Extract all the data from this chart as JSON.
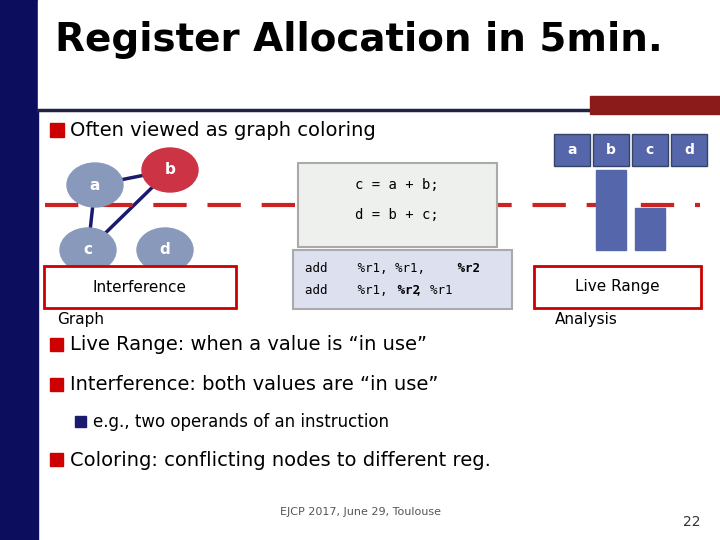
{
  "title": "Register Allocation in 5min.",
  "background_color": "#ffffff",
  "slide_left_bar_color": "#0d0d5e",
  "title_color": "#000000",
  "red_bar_color": "#8b1a1a",
  "bullet_red_color": "#cc0000",
  "bullet_blue_color": "#1a1a6e",
  "bullet1": "Often viewed as graph coloring",
  "bullet2": "Live Range: when a value is “in use”",
  "bullet3": "Interference: both values are “in use”",
  "sub_bullet": "e.g., two operands of an instruction",
  "bullet4": "Coloring: conflicting nodes to different reg.",
  "footer": "EJCP 2017, June 29, Toulouse",
  "page_num": "22",
  "node_color_a": "#8899bb",
  "node_color_b": "#cc3344",
  "node_color_cd": "#8899bb",
  "edge_color": "#1a1a6e",
  "code_box_bg": "#eef0ee",
  "add_box_bg": "#dde0ee",
  "reg_box_color": "#5566aa",
  "live_bar_color": "#5566aa",
  "dashed_line_color": "#cc2222",
  "interference_box_color": "#cc0000",
  "live_range_box_color": "#cc0000"
}
